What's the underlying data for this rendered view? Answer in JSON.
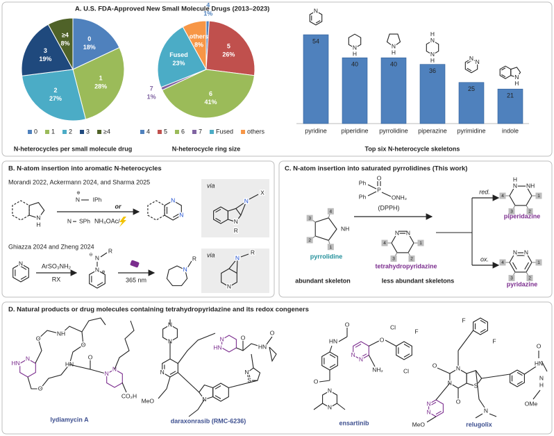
{
  "panel_a": {
    "title": "A. U.S. FDA-Approved New Small Molecule Drugs (2013–2023)"
  },
  "chart_data": [
    {
      "type": "pie",
      "title": "N-heterocycles per small molecule drug",
      "categories": [
        "0",
        "1",
        "2",
        "3",
        "≥4"
      ],
      "values": [
        18,
        28,
        27,
        19,
        8
      ],
      "value_labels": [
        "18%",
        "28%",
        "27%",
        "19%",
        "8%"
      ],
      "colors": [
        "#4f81bd",
        "#9bbb59",
        "#4bacc6",
        "#1f497d",
        "#4f6228"
      ],
      "legend": "bottom"
    },
    {
      "type": "pie",
      "title": "N-heterocycle ring size",
      "categories": [
        "4",
        "5",
        "6",
        "7",
        "Fused",
        "others"
      ],
      "values": [
        1,
        26,
        41,
        1,
        23,
        8
      ],
      "value_labels": [
        "1%",
        "26%",
        "41%",
        "1%",
        "23%",
        "8%"
      ],
      "colors": [
        "#4f81bd",
        "#c0504d",
        "#9bbb59",
        "#8064a2",
        "#4bacc6",
        "#f79646"
      ],
      "legend": "bottom"
    },
    {
      "type": "bar",
      "title": "Top six N-heterocycle skeletons",
      "categories": [
        "pyridine",
        "piperidine",
        "pyrrolidine",
        "piperazine",
        "pyrimidine",
        "indole"
      ],
      "values": [
        54,
        40,
        40,
        36,
        25,
        21
      ],
      "color": "#4f81bd"
    }
  ],
  "panel_b": {
    "title": "B. N-atom insertion into aromatic N-heterocycles",
    "reference_1": "Morandi 2022, Ackermann 2024, and Sharma 2025",
    "reference_2": "Ghiazza 2024 and Zheng 2024",
    "or": "or",
    "additive": "NH₄OAc/",
    "via": "via",
    "reagent": "ArSO₃NH₂",
    "base": "RX",
    "light": "365 nm"
  },
  "panel_c": {
    "title": "C. N-atom insertion into saturated pyrrolidines (This work)",
    "reagent": "(DPPH)",
    "start": "pyrrolidine",
    "start_note": "abundant skeleton",
    "intermediate": "tetrahydropyridazine",
    "products_note": "less abundant skeletons",
    "reduction": "red.",
    "oxidation": "ox.",
    "product_reduced": "piperidazine",
    "product_oxidized": "pyridazine",
    "positions": [
      "1",
      "2",
      "3",
      "4"
    ]
  },
  "panel_d": {
    "title": "D. Natural products or drug molecules containing tetrahydropyridazine and its redox congeners",
    "molecules": [
      "lydiamycin A",
      "daraxonrasib (RMC-6236)",
      "ensartinib",
      "relugolix"
    ]
  },
  "atoms": {
    "N": "N",
    "H": "H",
    "NH": "NH",
    "HN": "HN",
    "R": "R",
    "X": "X",
    "O": "O",
    "S": "S",
    "F": "F",
    "Cl": "Cl",
    "P": "P",
    "Ph": "Ph",
    "NH2": "NH₂",
    "ONH2": "ONH₂",
    "IPh": "IPh",
    "SPh": "SPh",
    "MeO": "MeO",
    "OMe": "OMe",
    "CO2H": "CO₂H",
    "plus": "⊕",
    "minus": "⊖"
  }
}
